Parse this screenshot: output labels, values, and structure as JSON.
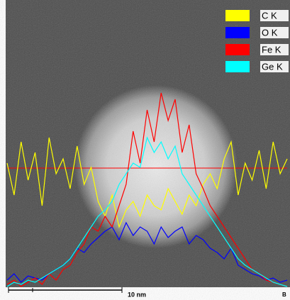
{
  "chart_data": {
    "type": "line",
    "series": [
      {
        "name": "C K",
        "color": "#ffff00",
        "values": [
          60,
          45,
          70,
          52,
          65,
          40,
          72,
          55,
          62,
          48,
          68,
          50,
          58,
          42,
          35,
          45,
          30,
          38,
          42,
          35,
          45,
          40,
          38,
          48,
          42,
          36,
          45,
          40,
          50,
          55,
          48,
          62,
          70,
          45,
          60,
          52,
          66,
          48,
          70,
          55,
          62
        ]
      },
      {
        "name": "O K",
        "color": "#0000ff",
        "values": [
          5,
          8,
          4,
          7,
          6,
          5,
          8,
          10,
          12,
          15,
          20,
          18,
          22,
          25,
          28,
          30,
          24,
          32,
          26,
          30,
          28,
          22,
          30,
          25,
          28,
          30,
          22,
          26,
          24,
          20,
          18,
          15,
          20,
          12,
          10,
          8,
          7,
          5,
          6,
          4,
          5
        ]
      },
      {
        "name": "Fe K",
        "color": "#ff0000",
        "values": [
          3,
          5,
          2,
          4,
          6,
          3,
          8,
          5,
          10,
          12,
          18,
          22,
          30,
          28,
          35,
          30,
          40,
          50,
          75,
          60,
          85,
          70,
          93,
          80,
          90,
          65,
          78,
          55,
          48,
          40,
          35,
          30,
          25,
          20,
          15,
          10,
          8,
          5,
          4,
          3,
          2
        ]
      },
      {
        "name": "Ge K",
        "color": "#00ffff",
        "values": [
          2,
          4,
          3,
          5,
          4,
          6,
          8,
          10,
          12,
          15,
          20,
          25,
          30,
          35,
          38,
          42,
          50,
          55,
          60,
          58,
          72,
          65,
          70,
          62,
          68,
          55,
          50,
          45,
          40,
          35,
          30,
          25,
          20,
          15,
          12,
          10,
          8,
          6,
          4,
          3,
          2
        ]
      }
    ],
    "ylim": [
      0,
      100
    ],
    "legend": "top-right",
    "annotations": [
      "10 nm",
      "B"
    ]
  }
}
